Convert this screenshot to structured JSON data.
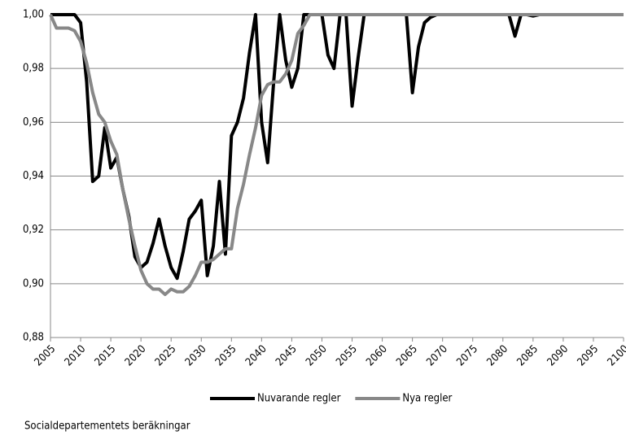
{
  "chart_data": {
    "type": "line",
    "xlim": [
      2005,
      2100
    ],
    "xticks": [
      2005,
      2010,
      2015,
      2020,
      2025,
      2030,
      2035,
      2040,
      2045,
      2050,
      2055,
      2060,
      2065,
      2070,
      2075,
      2080,
      2085,
      2090,
      2095,
      2100
    ],
    "ylim": [
      0.88,
      1
    ],
    "yticks": [
      {
        "value": 0.88,
        "label": "0,88"
      },
      {
        "value": 0.9,
        "label": "0,90"
      },
      {
        "value": 0.92,
        "label": "0,92"
      },
      {
        "value": 0.94,
        "label": "0,94"
      },
      {
        "value": 0.96,
        "label": "0,96"
      },
      {
        "value": 0.98,
        "label": "0,98"
      },
      {
        "value": 1,
        "label": "1,00"
      }
    ],
    "grid": true,
    "legend": "bottom",
    "source": "Socialdepartementets beräkningar",
    "x": [
      2005,
      2006,
      2007,
      2008,
      2009,
      2010,
      2011,
      2012,
      2013,
      2014,
      2015,
      2016,
      2017,
      2018,
      2019,
      2020,
      2021,
      2022,
      2023,
      2024,
      2025,
      2026,
      2027,
      2028,
      2029,
      2030,
      2031,
      2032,
      2033,
      2034,
      2035,
      2036,
      2037,
      2038,
      2039,
      2040,
      2041,
      2042,
      2043,
      2044,
      2045,
      2046,
      2047,
      2048,
      2049,
      2050,
      2051,
      2052,
      2053,
      2054,
      2055,
      2056,
      2057,
      2058,
      2059,
      2060,
      2061,
      2062,
      2063,
      2064,
      2065,
      2066,
      2067,
      2068,
      2069,
      2070,
      2071,
      2072,
      2073,
      2074,
      2075,
      2076,
      2077,
      2078,
      2079,
      2080,
      2081,
      2082,
      2083,
      2084,
      2085,
      2086,
      2087,
      2088,
      2089,
      2090,
      2091,
      2092,
      2093,
      2094,
      2095,
      2096,
      2097,
      2098,
      2099,
      2100
    ],
    "series": [
      {
        "name": "Nuvarande regler",
        "color": "#000000",
        "values": [
          1,
          1,
          1,
          1,
          1,
          0.997,
          0.975,
          0.938,
          0.94,
          0.958,
          0.943,
          0.947,
          0.935,
          0.925,
          0.91,
          0.906,
          0.908,
          0.915,
          0.924,
          0.914,
          0.906,
          0.902,
          0.912,
          0.924,
          0.927,
          0.931,
          0.903,
          0.914,
          0.938,
          0.911,
          0.955,
          0.96,
          0.969,
          0.986,
          1,
          0.96,
          0.945,
          0.975,
          1,
          0.983,
          0.973,
          0.98,
          1,
          1,
          1,
          1,
          0.985,
          0.98,
          1,
          1,
          0.966,
          0.984,
          1,
          1,
          1,
          1,
          1,
          1,
          1,
          1,
          0.971,
          0.988,
          0.997,
          0.999,
          1,
          1,
          1,
          1,
          1,
          1,
          1,
          1,
          1,
          1,
          1,
          1,
          1,
          0.992,
          1,
          1,
          0.9995,
          1,
          1,
          1,
          1,
          1,
          1,
          1,
          1,
          1,
          1,
          1,
          1,
          1,
          1,
          1
        ]
      },
      {
        "name": "Nya regler",
        "color": "#888888",
        "values": [
          1,
          0.995,
          0.995,
          0.995,
          0.994,
          0.99,
          0.982,
          0.971,
          0.963,
          0.96,
          0.953,
          0.948,
          0.935,
          0.924,
          0.914,
          0.905,
          0.9,
          0.898,
          0.898,
          0.896,
          0.898,
          0.897,
          0.897,
          0.899,
          0.903,
          0.908,
          0.908,
          0.909,
          0.911,
          0.913,
          0.913,
          0.928,
          0.937,
          0.948,
          0.958,
          0.97,
          0.974,
          0.975,
          0.975,
          0.978,
          0.983,
          0.993,
          0.996,
          1,
          1,
          1,
          1,
          1,
          1,
          1,
          1,
          1,
          1,
          1,
          1,
          1,
          1,
          1,
          1,
          1,
          1,
          1,
          1,
          1,
          1,
          1,
          1,
          1,
          1,
          1,
          1,
          1,
          1,
          1,
          1,
          1,
          1,
          1,
          1,
          1,
          1,
          1,
          1,
          1,
          1,
          1,
          1,
          1,
          1,
          1,
          1,
          1,
          1,
          1,
          1,
          1
        ]
      }
    ]
  }
}
